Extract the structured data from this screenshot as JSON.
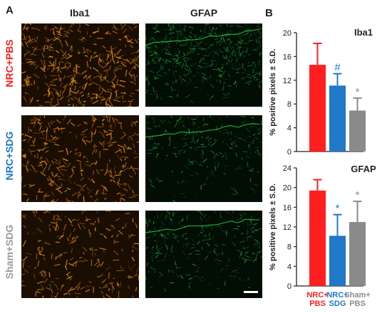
{
  "figure": {
    "panel_a_letter": "A",
    "panel_b_letter": "B",
    "column_headers": [
      "Iba1",
      "GFAP"
    ],
    "row_labels": [
      {
        "text": "NRC+PBS",
        "color": "#ff2020"
      },
      {
        "text": "NRC+SDG",
        "color": "#1a78c2"
      },
      {
        "text": "Sham+SDG",
        "color": "#999999"
      }
    ],
    "stain_colors": {
      "iba1": "#e8900a",
      "gfap": "#22d04a"
    }
  },
  "chart_data": [
    {
      "type": "bar",
      "title": "Iba1",
      "ylabel": "% positive pixels ± S.D.",
      "ylim": [
        0,
        20
      ],
      "yticks": [
        "0",
        "4",
        "8",
        "12",
        "16",
        "20"
      ],
      "categories": [
        "NRC+ PBS",
        "NRC+ SDG",
        "Sham+ PBS"
      ],
      "values": [
        14.6,
        11.1,
        6.9
      ],
      "errors": [
        3.6,
        2.0,
        2.1
      ],
      "colors": [
        "#ff1f1f",
        "#1f78c8",
        "#8a8a8a"
      ],
      "annotations": [
        "",
        "#",
        "*"
      ]
    },
    {
      "type": "bar",
      "title": "GFAP",
      "ylabel": "% positive pixels ± S.D.",
      "ylim": [
        0,
        24
      ],
      "yticks": [
        "0",
        "4",
        "8",
        "12",
        "16",
        "20",
        "24"
      ],
      "categories": [
        "NRC+ PBS",
        "NRC+ SDG",
        "Sham+ PBS"
      ],
      "values": [
        19.4,
        10.2,
        13.0
      ],
      "errors": [
        2.2,
        4.3,
        4.2
      ],
      "colors": [
        "#ff1f1f",
        "#1f78c8",
        "#8a8a8a"
      ],
      "annotations": [
        "",
        "*",
        "*"
      ],
      "category_lines": [
        [
          "NRC+",
          "PBS"
        ],
        [
          "NRC+",
          "SDG"
        ],
        [
          "Sham+",
          "PBS"
        ]
      ]
    }
  ]
}
